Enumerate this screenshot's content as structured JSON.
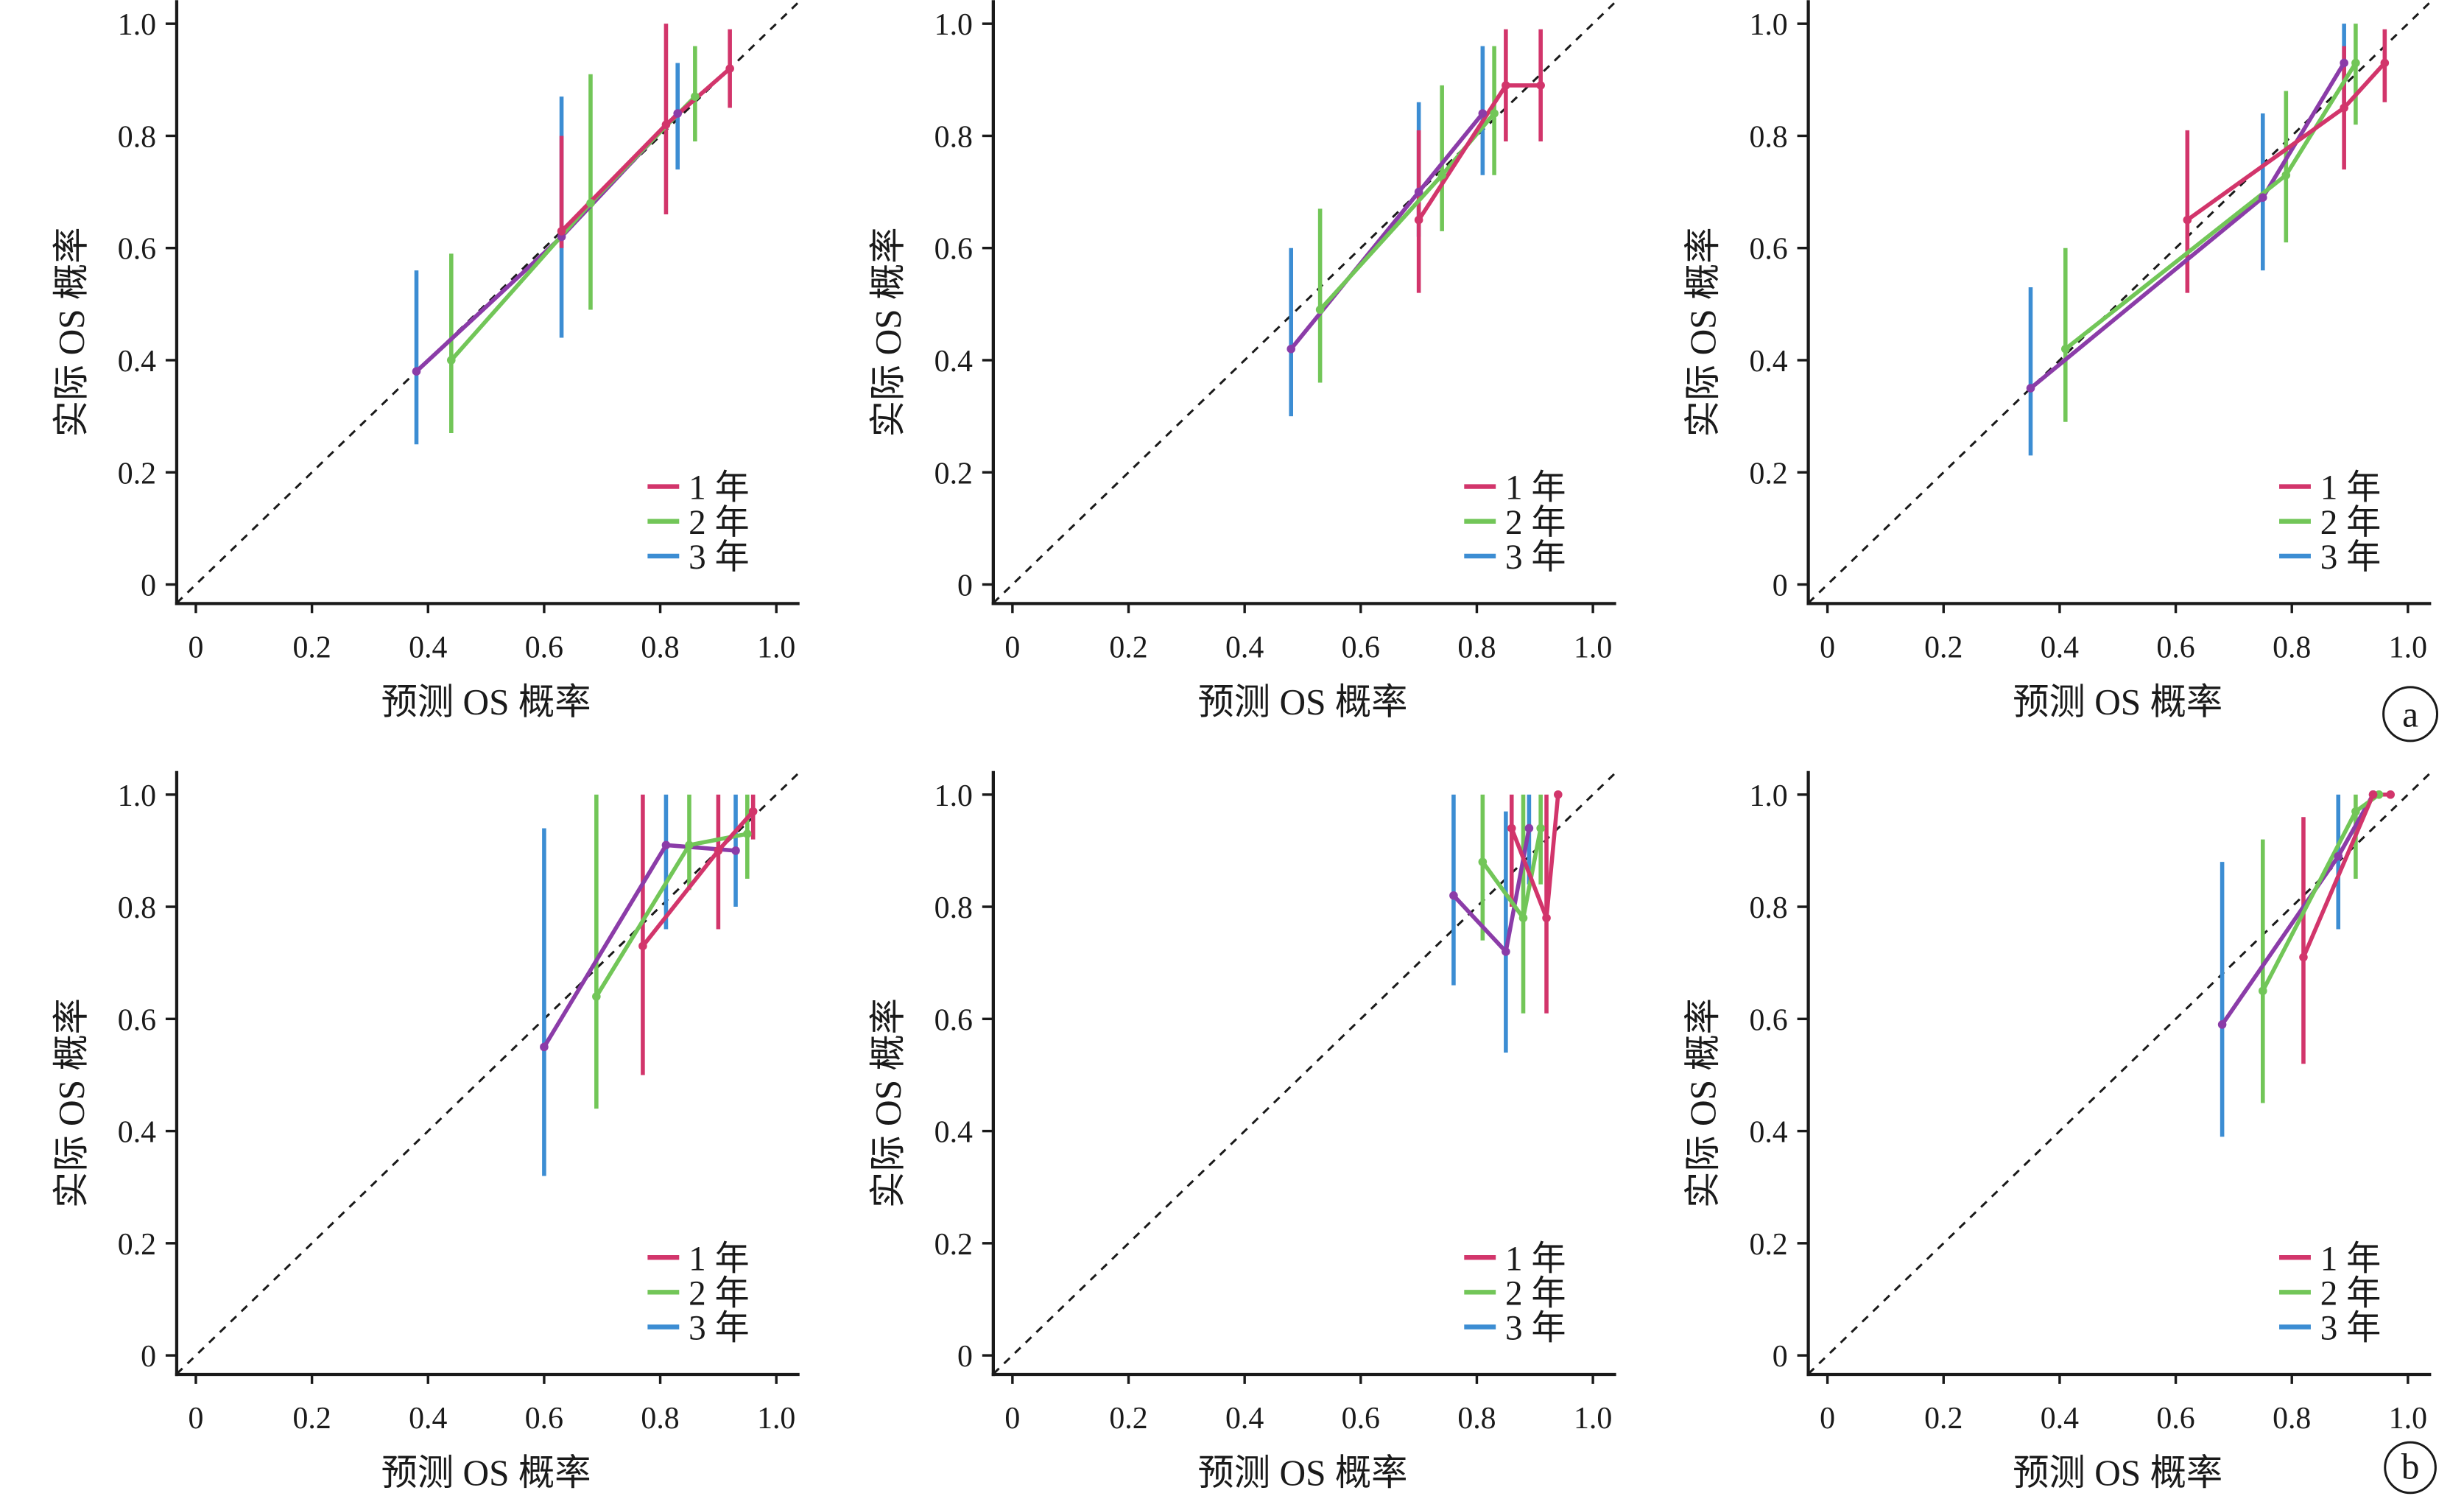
{
  "figure": {
    "row_labels": [
      "a",
      "b"
    ]
  },
  "chart_data": [
    {
      "type": "line",
      "xlabel": "预测 OS 概率",
      "ylabel": "实际 OS 概率",
      "x_tick_labels": [
        "0",
        "0.2",
        "0.4",
        "0.6",
        "0.8",
        "1.0"
      ],
      "y_tick_labels": [
        "0",
        "0.2",
        "0.4",
        "0.6",
        "0.8",
        "1.0"
      ],
      "xlim": [
        -0.033,
        1.04
      ],
      "ylim": [
        -0.034,
        1.042
      ],
      "diagonal_reference": true,
      "legend_position": "bottom-right",
      "series": [
        {
          "name": "1 年",
          "color": "#D2356B",
          "line_color": "#D2356B",
          "points": [
            {
              "x": 0.63,
              "y": 0.63,
              "lo": 0.6,
              "hi": 0.8
            },
            {
              "x": 0.81,
              "y": 0.82,
              "lo": 0.66,
              "hi": 1.0
            },
            {
              "x": 0.92,
              "y": 0.92,
              "lo": 0.85,
              "hi": 0.99
            }
          ]
        },
        {
          "name": "2 年",
          "color": "#72C658",
          "line_color": "#72C658",
          "points": [
            {
              "x": 0.44,
              "y": 0.4,
              "lo": 0.27,
              "hi": 0.59
            },
            {
              "x": 0.68,
              "y": 0.68,
              "lo": 0.49,
              "hi": 0.91
            },
            {
              "x": 0.86,
              "y": 0.87,
              "lo": 0.79,
              "hi": 0.96
            }
          ]
        },
        {
          "name": "3 年",
          "color": "#3C8DD3",
          "line_color": "#8B3CA8",
          "points": [
            {
              "x": 0.38,
              "y": 0.38,
              "lo": 0.25,
              "hi": 0.56
            },
            {
              "x": 0.63,
              "y": 0.62,
              "lo": 0.44,
              "hi": 0.87
            },
            {
              "x": 0.83,
              "y": 0.84,
              "lo": 0.74,
              "hi": 0.93
            }
          ]
        }
      ]
    },
    {
      "type": "line",
      "xlabel": "预测 OS 概率",
      "ylabel": "实际 OS 概率",
      "x_tick_labels": [
        "0",
        "0.2",
        "0.4",
        "0.6",
        "0.8",
        "1.0"
      ],
      "y_tick_labels": [
        "0",
        "0.2",
        "0.4",
        "0.6",
        "0.8",
        "1.0"
      ],
      "xlim": [
        -0.033,
        1.04
      ],
      "ylim": [
        -0.034,
        1.042
      ],
      "diagonal_reference": true,
      "legend_position": "bottom-right",
      "series": [
        {
          "name": "1 年",
          "color": "#D2356B",
          "line_color": "#D2356B",
          "points": [
            {
              "x": 0.7,
              "y": 0.65,
              "lo": 0.52,
              "hi": 0.81
            },
            {
              "x": 0.85,
              "y": 0.89,
              "lo": 0.79,
              "hi": 0.99
            },
            {
              "x": 0.91,
              "y": 0.89,
              "lo": 0.79,
              "hi": 0.99
            }
          ]
        },
        {
          "name": "2 年",
          "color": "#72C658",
          "line_color": "#72C658",
          "points": [
            {
              "x": 0.53,
              "y": 0.49,
              "lo": 0.36,
              "hi": 0.67
            },
            {
              "x": 0.74,
              "y": 0.73,
              "lo": 0.63,
              "hi": 0.89
            },
            {
              "x": 0.83,
              "y": 0.84,
              "lo": 0.73,
              "hi": 0.96
            }
          ]
        },
        {
          "name": "3 年",
          "color": "#3C8DD3",
          "line_color": "#8B3CA8",
          "points": [
            {
              "x": 0.48,
              "y": 0.42,
              "lo": 0.3,
              "hi": 0.6
            },
            {
              "x": 0.7,
              "y": 0.7,
              "lo": 0.62,
              "hi": 0.86
            },
            {
              "x": 0.81,
              "y": 0.84,
              "lo": 0.73,
              "hi": 0.96
            }
          ]
        }
      ]
    },
    {
      "type": "line",
      "xlabel": "预测 OS 概率",
      "ylabel": "实际 OS 概率",
      "x_tick_labels": [
        "0",
        "0.2",
        "0.4",
        "0.6",
        "0.8",
        "1.0"
      ],
      "y_tick_labels": [
        "0",
        "0.2",
        "0.4",
        "0.6",
        "0.8",
        "1.0"
      ],
      "xlim": [
        -0.033,
        1.04
      ],
      "ylim": [
        -0.034,
        1.042
      ],
      "diagonal_reference": true,
      "legend_position": "bottom-right",
      "series": [
        {
          "name": "1 年",
          "color": "#D2356B",
          "line_color": "#D2356B",
          "points": [
            {
              "x": 0.62,
              "y": 0.65,
              "lo": 0.52,
              "hi": 0.81
            },
            {
              "x": 0.89,
              "y": 0.85,
              "lo": 0.74,
              "hi": 0.96
            },
            {
              "x": 0.96,
              "y": 0.93,
              "lo": 0.86,
              "hi": 0.99
            }
          ]
        },
        {
          "name": "2 年",
          "color": "#72C658",
          "line_color": "#72C658",
          "points": [
            {
              "x": 0.41,
              "y": 0.42,
              "lo": 0.29,
              "hi": 0.6
            },
            {
              "x": 0.79,
              "y": 0.73,
              "lo": 0.61,
              "hi": 0.88
            },
            {
              "x": 0.91,
              "y": 0.93,
              "lo": 0.82,
              "hi": 1.0
            }
          ]
        },
        {
          "name": "3 年",
          "color": "#3C8DD3",
          "line_color": "#8B3CA8",
          "points": [
            {
              "x": 0.35,
              "y": 0.35,
              "lo": 0.23,
              "hi": 0.53
            },
            {
              "x": 0.75,
              "y": 0.69,
              "lo": 0.56,
              "hi": 0.84
            },
            {
              "x": 0.89,
              "y": 0.93,
              "lo": 0.85,
              "hi": 1.0
            }
          ]
        }
      ]
    },
    {
      "type": "line",
      "xlabel": "预测 OS 概率",
      "ylabel": "实际 OS 概率",
      "x_tick_labels": [
        "0",
        "0.2",
        "0.4",
        "0.6",
        "0.8",
        "1.0"
      ],
      "y_tick_labels": [
        "0",
        "0.2",
        "0.4",
        "0.6",
        "0.8",
        "1.0"
      ],
      "xlim": [
        -0.033,
        1.04
      ],
      "ylim": [
        -0.034,
        1.042
      ],
      "diagonal_reference": true,
      "legend_position": "bottom-right",
      "series": [
        {
          "name": "1 年",
          "color": "#D2356B",
          "line_color": "#D2356B",
          "points": [
            {
              "x": 0.77,
              "y": 0.73,
              "lo": 0.5,
              "hi": 1.0
            },
            {
              "x": 0.9,
              "y": 0.9,
              "lo": 0.76,
              "hi": 1.0
            },
            {
              "x": 0.96,
              "y": 0.97,
              "lo": 0.92,
              "hi": 1.0
            }
          ]
        },
        {
          "name": "2 年",
          "color": "#72C658",
          "line_color": "#72C658",
          "points": [
            {
              "x": 0.69,
              "y": 0.64,
              "lo": 0.44,
              "hi": 1.0
            },
            {
              "x": 0.85,
              "y": 0.91,
              "lo": 0.83,
              "hi": 1.0
            },
            {
              "x": 0.95,
              "y": 0.93,
              "lo": 0.85,
              "hi": 1.0
            }
          ]
        },
        {
          "name": "3 年",
          "color": "#3C8DD3",
          "line_color": "#8B3CA8",
          "points": [
            {
              "x": 0.6,
              "y": 0.55,
              "lo": 0.32,
              "hi": 0.94
            },
            {
              "x": 0.81,
              "y": 0.91,
              "lo": 0.76,
              "hi": 1.0
            },
            {
              "x": 0.93,
              "y": 0.9,
              "lo": 0.8,
              "hi": 1.0
            }
          ]
        }
      ]
    },
    {
      "type": "line",
      "xlabel": "预测 OS 概率",
      "ylabel": "实际 OS 概率",
      "x_tick_labels": [
        "0",
        "0.2",
        "0.4",
        "0.6",
        "0.8",
        "1.0"
      ],
      "y_tick_labels": [
        "0",
        "0.2",
        "0.4",
        "0.6",
        "0.8",
        "1.0"
      ],
      "xlim": [
        -0.033,
        1.04
      ],
      "ylim": [
        -0.034,
        1.042
      ],
      "diagonal_reference": true,
      "legend_position": "bottom-right",
      "series": [
        {
          "name": "1 年",
          "color": "#D2356B",
          "line_color": "#D2356B",
          "points": [
            {
              "x": 0.86,
              "y": 0.94,
              "lo": 0.8,
              "hi": 1.0
            },
            {
              "x": 0.92,
              "y": 0.78,
              "lo": 0.61,
              "hi": 1.0
            },
            {
              "x": 0.94,
              "y": 1.0,
              "lo": 1.0,
              "hi": 1.0
            }
          ]
        },
        {
          "name": "2 年",
          "color": "#72C658",
          "line_color": "#72C658",
          "points": [
            {
              "x": 0.81,
              "y": 0.88,
              "lo": 0.74,
              "hi": 1.0
            },
            {
              "x": 0.88,
              "y": 0.78,
              "lo": 0.61,
              "hi": 1.0
            },
            {
              "x": 0.91,
              "y": 0.94,
              "lo": 0.84,
              "hi": 1.0
            }
          ]
        },
        {
          "name": "3 年",
          "color": "#3C8DD3",
          "line_color": "#8B3CA8",
          "points": [
            {
              "x": 0.76,
              "y": 0.82,
              "lo": 0.66,
              "hi": 1.0
            },
            {
              "x": 0.85,
              "y": 0.72,
              "lo": 0.54,
              "hi": 0.97
            },
            {
              "x": 0.89,
              "y": 0.94,
              "lo": 0.84,
              "hi": 1.0
            }
          ]
        }
      ]
    },
    {
      "type": "line",
      "xlabel": "预测 OS 概率",
      "ylabel": "实际 OS 概率",
      "x_tick_labels": [
        "0",
        "0.2",
        "0.4",
        "0.6",
        "0.8",
        "1.0"
      ],
      "y_tick_labels": [
        "0",
        "0.2",
        "0.4",
        "0.6",
        "0.8",
        "1.0"
      ],
      "xlim": [
        -0.033,
        1.04
      ],
      "ylim": [
        -0.034,
        1.042
      ],
      "diagonal_reference": true,
      "legend_position": "bottom-right",
      "series": [
        {
          "name": "1 年",
          "color": "#D2356B",
          "line_color": "#D2356B",
          "points": [
            {
              "x": 0.82,
              "y": 0.71,
              "lo": 0.52,
              "hi": 0.96
            },
            {
              "x": 0.94,
              "y": 1.0,
              "lo": 1.0,
              "hi": 1.0
            },
            {
              "x": 0.97,
              "y": 1.0,
              "lo": 1.0,
              "hi": 1.0
            }
          ]
        },
        {
          "name": "2 年",
          "color": "#72C658",
          "line_color": "#72C658",
          "points": [
            {
              "x": 0.75,
              "y": 0.65,
              "lo": 0.45,
              "hi": 0.92
            },
            {
              "x": 0.91,
              "y": 0.97,
              "lo": 0.85,
              "hi": 1.0
            },
            {
              "x": 0.95,
              "y": 1.0,
              "lo": 1.0,
              "hi": 1.0
            }
          ]
        },
        {
          "name": "3 年",
          "color": "#3C8DD3",
          "line_color": "#8B3CA8",
          "points": [
            {
              "x": 0.68,
              "y": 0.59,
              "lo": 0.39,
              "hi": 0.88
            },
            {
              "x": 0.88,
              "y": 0.89,
              "lo": 0.76,
              "hi": 1.0
            },
            {
              "x": 0.94,
              "y": 1.0,
              "lo": 1.0,
              "hi": 1.0
            }
          ]
        }
      ]
    }
  ]
}
